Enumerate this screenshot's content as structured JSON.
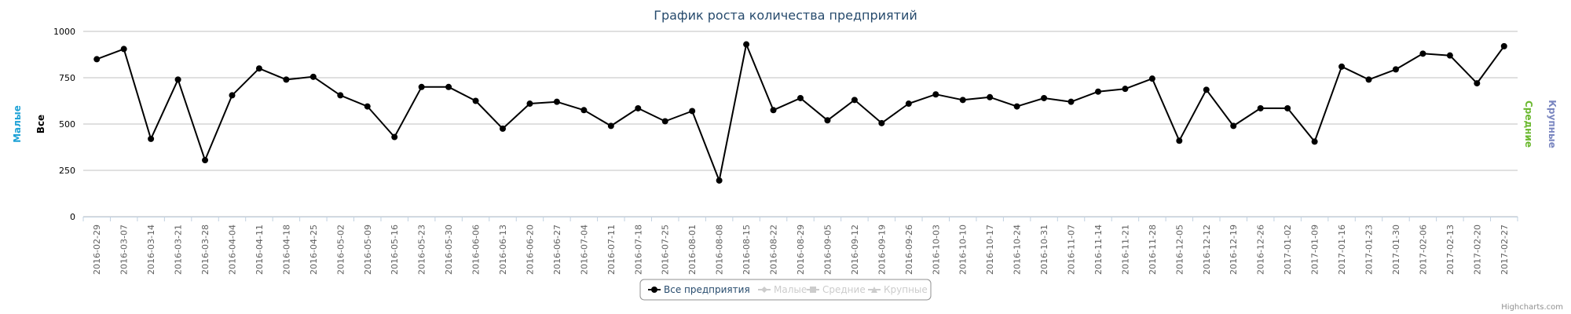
{
  "chart_data": {
    "type": "line",
    "title": "График роста количества предприятий",
    "y_axis_titles": [
      {
        "text": "Малые",
        "color": "#1fa2d6"
      },
      {
        "text": "Все",
        "color": "#000000"
      },
      {
        "text": "Средние",
        "color": "#6ab82e"
      },
      {
        "text": "Крупные",
        "color": "#7a86c0"
      }
    ],
    "yticks": [
      0,
      250,
      500,
      750,
      1000
    ],
    "ylim": [
      0,
      1000
    ],
    "grid": true,
    "legend_position": "bottom-center",
    "legend": [
      {
        "name": "Все предприятия",
        "active": true,
        "color": "#000000",
        "marker": "circle"
      },
      {
        "name": "Малые",
        "active": false,
        "color": "#cccccc",
        "marker": "diamond"
      },
      {
        "name": "Средние",
        "active": false,
        "color": "#cccccc",
        "marker": "square"
      },
      {
        "name": "Крупные",
        "active": false,
        "color": "#cccccc",
        "marker": "triangle"
      }
    ],
    "categories": [
      "2016-02-29",
      "2016-03-07",
      "2016-03-14",
      "2016-03-21",
      "2016-03-28",
      "2016-04-04",
      "2016-04-11",
      "2016-04-18",
      "2016-04-25",
      "2016-05-02",
      "2016-05-09",
      "2016-05-16",
      "2016-05-23",
      "2016-05-30",
      "2016-06-06",
      "2016-06-13",
      "2016-06-20",
      "2016-06-27",
      "2016-07-04",
      "2016-07-11",
      "2016-07-18",
      "2016-07-25",
      "2016-08-01",
      "2016-08-08",
      "2016-08-15",
      "2016-08-22",
      "2016-08-29",
      "2016-09-05",
      "2016-09-12",
      "2016-09-19",
      "2016-09-26",
      "2016-10-03",
      "2016-10-10",
      "2016-10-17",
      "2016-10-24",
      "2016-10-31",
      "2016-11-07",
      "2016-11-14",
      "2016-11-21",
      "2016-11-28",
      "2016-12-05",
      "2016-12-12",
      "2016-12-19",
      "2016-12-26",
      "2017-01-02",
      "2017-01-09",
      "2017-01-16",
      "2017-01-23",
      "2017-01-30",
      "2017-02-06",
      "2017-02-13",
      "2017-02-20",
      "2017-02-27"
    ],
    "series": [
      {
        "name": "Все предприятия",
        "color": "#000000",
        "values": [
          850,
          905,
          420,
          740,
          305,
          655,
          800,
          740,
          755,
          655,
          595,
          430,
          700,
          700,
          625,
          475,
          610,
          620,
          575,
          490,
          585,
          515,
          570,
          195,
          930,
          575,
          640,
          520,
          630,
          505,
          610,
          660,
          630,
          645,
          595,
          640,
          620,
          675,
          690,
          745,
          410,
          685,
          490,
          585,
          585,
          405,
          810,
          740,
          795,
          880,
          870,
          720,
          920
        ]
      }
    ],
    "credits": "Highcharts.com"
  }
}
